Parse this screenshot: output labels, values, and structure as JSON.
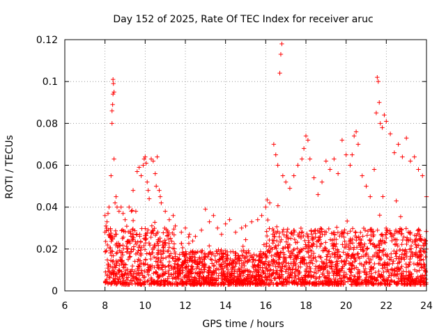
{
  "chart_data": {
    "type": "scatter",
    "title": "Day 152 of 2025, Rate Of TEC Index for receiver aruc",
    "xlabel": "GPS time / hours",
    "ylabel": "ROTI / TECUs",
    "xlim": [
      6,
      24
    ],
    "ylim": [
      0,
      0.12
    ],
    "xticks": [
      6,
      8,
      10,
      12,
      14,
      16,
      18,
      20,
      22,
      24
    ],
    "xtick_labels": [
      "6",
      "8",
      "10",
      "12",
      "14",
      "16",
      "18",
      "20",
      "22",
      "24"
    ],
    "yticks": [
      0,
      0.02,
      0.04,
      0.06,
      0.08,
      0.1,
      0.12
    ],
    "ytick_labels": [
      "0",
      "0.02",
      "0.04",
      "0.06",
      "0.08",
      "0.1",
      "0.12"
    ],
    "grid": true,
    "marker": "+",
    "color": "#ff0000",
    "series": [
      {
        "name": "ROTI",
        "x": [
          8.0,
          8.0,
          8.05,
          8.1,
          8.15,
          8.2,
          8.3,
          8.35,
          8.35,
          8.38,
          8.4,
          8.4,
          8.42,
          8.45,
          8.45,
          8.5,
          8.55,
          8.6,
          8.7,
          8.8,
          8.9,
          9.0,
          9.2,
          9.4,
          9.6,
          9.7,
          9.8,
          9.9,
          9.95,
          10.0,
          10.05,
          10.1,
          10.15,
          10.2,
          10.3,
          10.4,
          10.5,
          10.55,
          10.6,
          10.7,
          10.75,
          10.8,
          11.0,
          11.2,
          11.5,
          11.8,
          12.0,
          12.2,
          12.5,
          12.8,
          13.0,
          13.2,
          13.4,
          13.6,
          13.8,
          14.0,
          14.2,
          14.5,
          14.8,
          15.0,
          15.3,
          15.6,
          15.8,
          16.0,
          16.2,
          16.4,
          16.5,
          16.6,
          16.7,
          16.75,
          16.8,
          16.85,
          17.0,
          17.2,
          17.4,
          17.6,
          17.8,
          17.9,
          18.0,
          18.1,
          18.2,
          18.4,
          18.6,
          18.8,
          19.0,
          19.2,
          19.4,
          19.6,
          19.8,
          20.0,
          20.2,
          20.3,
          20.4,
          20.5,
          20.6,
          20.8,
          21.0,
          21.2,
          21.4,
          21.5,
          21.55,
          21.6,
          21.65,
          21.7,
          21.8,
          21.9,
          22.0,
          22.2,
          22.4,
          22.6,
          22.8,
          23.0,
          23.2,
          23.4,
          23.6,
          23.8,
          24.0
        ],
        "y": [
          0.036,
          0.028,
          0.031,
          0.033,
          0.037,
          0.04,
          0.055,
          0.08,
          0.086,
          0.089,
          0.094,
          0.101,
          0.099,
          0.095,
          0.063,
          0.042,
          0.045,
          0.04,
          0.038,
          0.04,
          0.037,
          0.034,
          0.04,
          0.048,
          0.057,
          0.059,
          0.055,
          0.06,
          0.063,
          0.064,
          0.061,
          0.052,
          0.048,
          0.044,
          0.063,
          0.062,
          0.056,
          0.05,
          0.064,
          0.048,
          0.045,
          0.042,
          0.038,
          0.034,
          0.031,
          0.028,
          0.03,
          0.027,
          0.026,
          0.029,
          0.039,
          0.033,
          0.036,
          0.03,
          0.027,
          0.032,
          0.034,
          0.028,
          0.03,
          0.031,
          0.033,
          0.034,
          0.036,
          0.04,
          0.042,
          0.07,
          0.065,
          0.06,
          0.104,
          0.113,
          0.118,
          0.055,
          0.052,
          0.049,
          0.055,
          0.06,
          0.063,
          0.068,
          0.074,
          0.072,
          0.063,
          0.054,
          0.046,
          0.052,
          0.062,
          0.058,
          0.063,
          0.056,
          0.072,
          0.065,
          0.06,
          0.065,
          0.074,
          0.076,
          0.07,
          0.055,
          0.05,
          0.045,
          0.058,
          0.085,
          0.102,
          0.1,
          0.09,
          0.08,
          0.078,
          0.084,
          0.081,
          0.075,
          0.066,
          0.07,
          0.064,
          0.073,
          0.062,
          0.064,
          0.058,
          0.055,
          0.045
        ],
        "baseline_range": [
          0.003,
          0.03
        ]
      }
    ]
  }
}
